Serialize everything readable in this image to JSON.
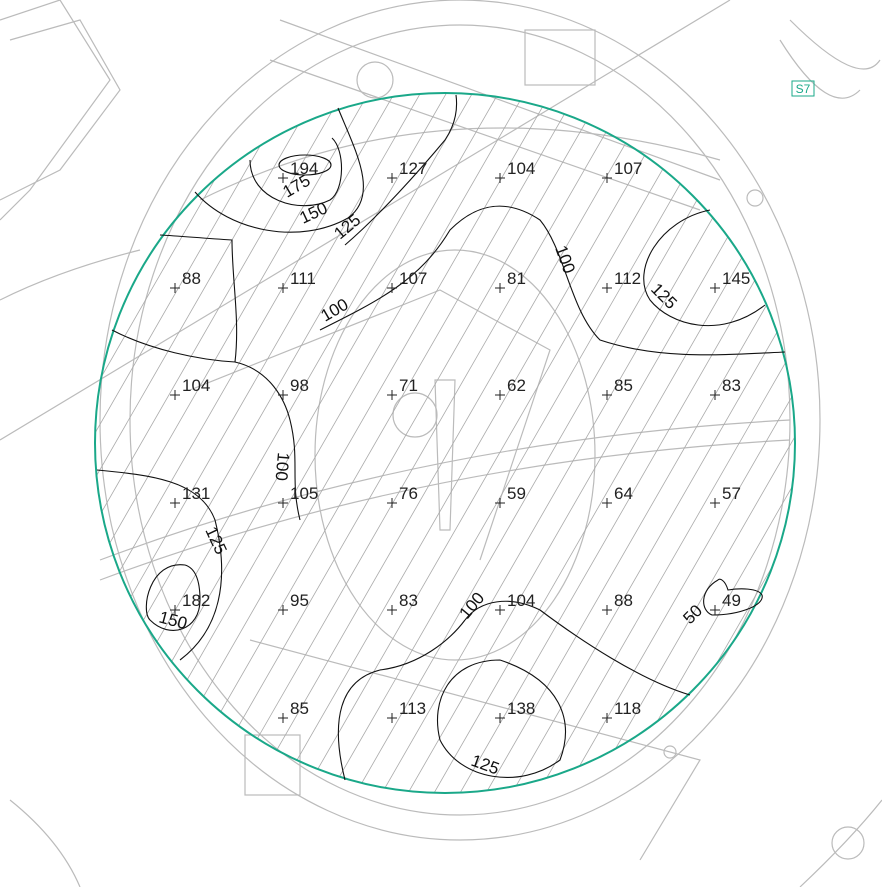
{
  "sheet_label": "S7",
  "grid": {
    "rows": [
      [
        null,
        194,
        127,
        104,
        107,
        null
      ],
      [
        88,
        111,
        107,
        81,
        112,
        145
      ],
      [
        104,
        98,
        71,
        62,
        85,
        83
      ],
      [
        131,
        105,
        76,
        59,
        64,
        57
      ],
      [
        182,
        95,
        83,
        104,
        88,
        49
      ],
      [
        null,
        85,
        113,
        138,
        118,
        null
      ]
    ]
  },
  "contour_labels": [
    175,
    150,
    125,
    100,
    100,
    125,
    100,
    125,
    150,
    100,
    125,
    50
  ]
}
